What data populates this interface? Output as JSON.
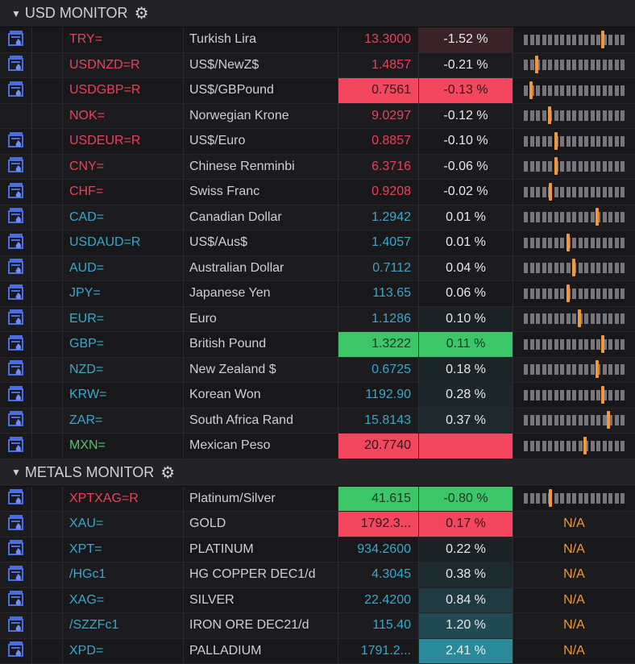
{
  "colors": {
    "down": "#e8415a",
    "up": "#3aa6c8",
    "neutral": "#4cc76a",
    "flash_red": "#f2475f",
    "flash_green": "#3dc56a",
    "marker": "#f0983a"
  },
  "sections": [
    {
      "title": "USD MONITOR",
      "icon": "gear-icon",
      "rows": [
        {
          "ric": "TRY=",
          "name": "Turkish Lira",
          "price": "13.3000",
          "change": "-1.52 %",
          "dir": "down",
          "chbg": "#3a2229",
          "range": 0.8,
          "icon": true
        },
        {
          "ric": "USDNZD=R",
          "name": "US$/NewZ$",
          "price": "1.4857",
          "change": "-0.21 %",
          "dir": "down",
          "range": 0.12,
          "icon": true
        },
        {
          "ric": "USDGBP=R",
          "name": "US$/GBPound",
          "price": "0.7561",
          "change": "-0.13 %",
          "dir": "down",
          "flash": "red",
          "range": 0.06,
          "icon": true
        },
        {
          "ric": "NOK=",
          "name": "Norwegian Krone",
          "price": "9.0297",
          "change": "-0.12 %",
          "dir": "down",
          "range": 0.25,
          "icon": false
        },
        {
          "ric": "USDEUR=R",
          "name": "US$/Euro",
          "price": "0.8857",
          "change": "-0.10 %",
          "dir": "down",
          "range": 0.32,
          "icon": true
        },
        {
          "ric": "CNY=",
          "name": "Chinese Renminbi",
          "price": "6.3716",
          "change": "-0.06 %",
          "dir": "down",
          "range": 0.32,
          "icon": true
        },
        {
          "ric": "CHF=",
          "name": "Swiss Franc",
          "price": "0.9208",
          "change": "-0.02 %",
          "dir": "down",
          "range": 0.26,
          "icon": true
        },
        {
          "ric": "CAD=",
          "name": "Canadian Dollar",
          "price": "1.2942",
          "change": "0.01 %",
          "dir": "up",
          "range": 0.74,
          "icon": true
        },
        {
          "ric": "USDAUD=R",
          "name": "US$/Aus$",
          "price": "1.4057",
          "change": "0.01 %",
          "dir": "up",
          "range": 0.44,
          "icon": true
        },
        {
          "ric": "AUD=",
          "name": "Australian Dollar",
          "price": "0.7112",
          "change": "0.04 %",
          "dir": "up",
          "range": 0.5,
          "icon": true
        },
        {
          "ric": "JPY=",
          "name": "Japanese Yen",
          "price": "113.65",
          "change": "0.06 %",
          "dir": "up",
          "range": 0.44,
          "icon": true
        },
        {
          "ric": "EUR=",
          "name": "Euro",
          "price": "1.1286",
          "change": "0.10 %",
          "dir": "up",
          "chbg": "#1b2225",
          "range": 0.56,
          "icon": true
        },
        {
          "ric": "GBP=",
          "name": "British Pound",
          "price": "1.3222",
          "change": "0.11 %",
          "dir": "up",
          "flash": "green",
          "range": 0.8,
          "icon": true
        },
        {
          "ric": "NZD=",
          "name": "New Zealand $",
          "price": "0.6725",
          "change": "0.18 %",
          "dir": "up",
          "chbg": "#1b2427",
          "range": 0.74,
          "icon": true
        },
        {
          "ric": "KRW=",
          "name": "Korean Won",
          "price": "1192.90",
          "change": "0.28 %",
          "dir": "up",
          "chbg": "#1c272b",
          "range": 0.8,
          "icon": true
        },
        {
          "ric": "ZAR=",
          "name": "South Africa Rand",
          "price": "15.8143",
          "change": "0.37 %",
          "dir": "up",
          "chbg": "#1d292d",
          "range": 0.86,
          "icon": true
        },
        {
          "ric": "MXN=",
          "name": "Mexican Peso",
          "price": "20.7740",
          "change": "",
          "dir": "neutral",
          "flash": "red",
          "range": 0.62,
          "icon": true
        }
      ]
    },
    {
      "title": "METALS MONITOR",
      "icon": "gear-icon",
      "rows": [
        {
          "ric": "XPTXAG=R",
          "name": "Platinum/Silver",
          "price": "41.615",
          "change": "-0.80 %",
          "dir": "down",
          "flash": "green",
          "range": 0.26,
          "icon": true
        },
        {
          "ric": "XAU=",
          "name": "GOLD",
          "price": "1792.3...",
          "change": "0.17 %",
          "dir": "up",
          "flash": "red",
          "range_text": "N/A",
          "icon": true
        },
        {
          "ric": "XPT=",
          "name": "PLATINUM",
          "price": "934.2600",
          "change": "0.22 %",
          "dir": "up",
          "chbg": "#1b2326",
          "range_text": "N/A",
          "icon": true
        },
        {
          "ric": "/HGc1",
          "name": "HG COPPER DEC1/d",
          "price": "4.3045",
          "change": "0.38 %",
          "dir": "up",
          "chbg": "#1d2a2e",
          "range_text": "N/A",
          "icon": true
        },
        {
          "ric": "XAG=",
          "name": "SILVER",
          "price": "22.4200",
          "change": "0.84 %",
          "dir": "up",
          "chbg": "#1f3a40",
          "range_text": "N/A",
          "icon": true
        },
        {
          "ric": "/SZZFc1",
          "name": "IRON ORE DEC21/d",
          "price": "115.40",
          "change": "1.20 %",
          "dir": "up",
          "chbg": "#214a52",
          "range_text": "N/A",
          "icon": true
        },
        {
          "ric": "XPD=",
          "name": "PALLADIUM",
          "price": "1791.2...",
          "change": "2.41 %",
          "dir": "up",
          "chbg": "#2a8a9a",
          "range_text": "N/A",
          "icon": true
        }
      ]
    }
  ]
}
